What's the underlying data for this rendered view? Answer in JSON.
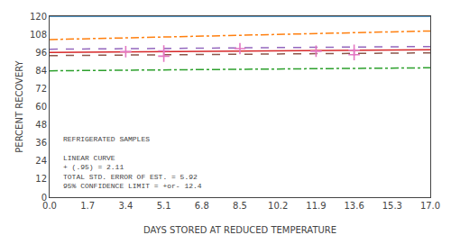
{
  "chart_data": {
    "type": "line",
    "xlabel": "DAYS STORED AT REDUCED TEMPERATURE",
    "ylabel": "PERCENT RECOVERY",
    "xlim": [
      0,
      17.0
    ],
    "ylim": [
      0,
      120
    ],
    "xticks": [
      {
        "value": 0,
        "label": "0.0"
      },
      1.7,
      3.4,
      5.1,
      6.8,
      8.5,
      10.2,
      11.9,
      13.6,
      15.3,
      {
        "value": 17,
        "label": "17.0"
      }
    ],
    "yticks": [
      0,
      12,
      24,
      36,
      48,
      60,
      72,
      84,
      96,
      108,
      120
    ],
    "grid": false,
    "annotations": [
      "REFRIGERATED SAMPLES",
      "LINEAR CURVE",
      "+ (.95) = 2.11",
      "TOTAL STD. ERROR OF EST. = 5.92",
      "95% CONFIDENCE LIMIT = +or- 12.4"
    ],
    "series": [
      {
        "type": "line",
        "line_style": "solid",
        "x": [
          0,
          17.0
        ],
        "values": [
          120,
          120
        ]
      },
      {
        "type": "line",
        "line_style": "dashdot",
        "x": [
          0.0,
          17.0
        ],
        "values": [
          104.5,
          110.2
        ]
      },
      {
        "type": "line",
        "line_style": "dashdot",
        "x": [
          0.0,
          17.0
        ],
        "values": [
          83.8,
          85.8
        ]
      },
      {
        "type": "line",
        "line_style": "solid",
        "x": [
          0.0,
          17.0
        ],
        "values": [
          96.0,
          97.8
        ]
      },
      {
        "type": "line",
        "line_style": "dash",
        "x": [
          0.0,
          17.0
        ],
        "values": [
          98.11,
          99.91
        ]
      },
      {
        "type": "line",
        "line_style": "dash",
        "x": [
          0.0,
          17.0
        ],
        "values": [
          93.89,
          95.69
        ]
      },
      {
        "type": "scatter",
        "marker": "plus",
        "x": [
          3.4,
          5.1,
          5.1,
          8.5,
          11.9,
          13.6,
          13.6
        ],
        "values": [
          96.5,
          97.0,
          93.5,
          98.5,
          96.8,
          97.5,
          94.5
        ]
      }
    ]
  }
}
